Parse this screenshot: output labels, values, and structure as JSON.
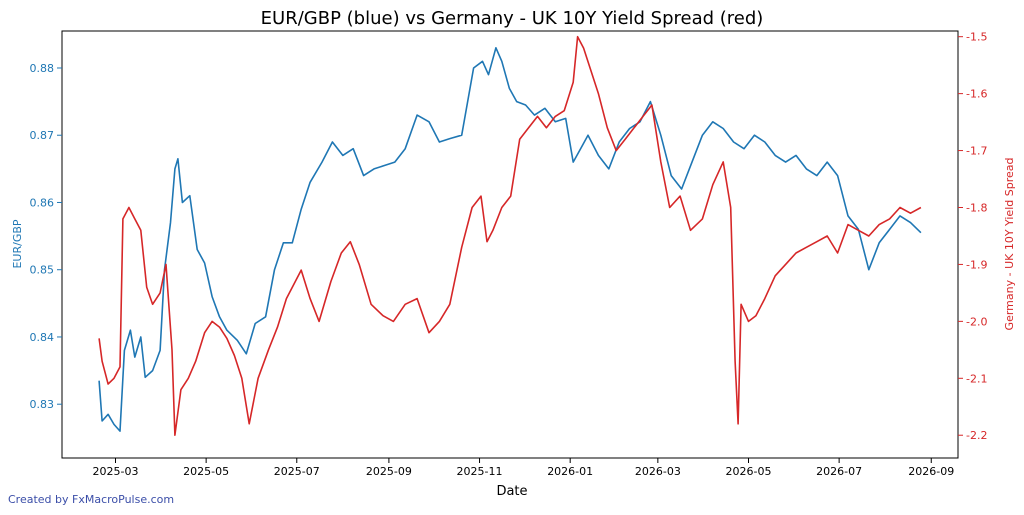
{
  "chart_data": {
    "type": "line",
    "title": "EUR/GBP (blue) vs Germany - UK 10Y Yield Spread (red)",
    "xlabel": "Date",
    "x_ticks": [
      "2025-03",
      "2025-05",
      "2025-07",
      "2025-09",
      "2025-11",
      "2026-01",
      "2026-03",
      "2026-05",
      "2026-07",
      "2026-09"
    ],
    "xlim": [
      "2025-01-24",
      "2026-09-19"
    ],
    "y_left": {
      "label": "EUR/GBP",
      "ticks": [
        "0.83",
        "0.84",
        "0.85",
        "0.86",
        "0.87",
        "0.88"
      ],
      "ylim": [
        0.822,
        0.8855
      ],
      "color": "#1f77b4"
    },
    "y_right": {
      "label": "Germany - UK 10Y Yield Spread",
      "ticks": [
        "-2.2",
        "-2.1",
        "-2.0",
        "-1.9",
        "-1.8",
        "-1.7",
        "-1.6",
        "-1.5"
      ],
      "ylim": [
        -2.24,
        -1.49
      ],
      "color": "#d62728"
    },
    "series": [
      {
        "name": "EUR/GBP",
        "axis": "left",
        "color": "#1f77b4",
        "x": [
          "2025-02-18",
          "2025-02-20",
          "2025-02-24",
          "2025-02-28",
          "2025-03-04",
          "2025-03-07",
          "2025-03-11",
          "2025-03-14",
          "2025-03-18",
          "2025-03-21",
          "2025-03-26",
          "2025-03-31",
          "2025-04-03",
          "2025-04-07",
          "2025-04-10",
          "2025-04-12",
          "2025-04-15",
          "2025-04-20",
          "2025-04-25",
          "2025-04-30",
          "2025-05-05",
          "2025-05-10",
          "2025-05-15",
          "2025-05-22",
          "2025-05-28",
          "2025-06-03",
          "2025-06-10",
          "2025-06-16",
          "2025-06-22",
          "2025-06-28",
          "2025-07-04",
          "2025-07-10",
          "2025-07-18",
          "2025-07-25",
          "2025-08-01",
          "2025-08-08",
          "2025-08-15",
          "2025-08-22",
          "2025-08-29",
          "2025-09-05",
          "2025-09-12",
          "2025-09-20",
          "2025-09-28",
          "2025-10-05",
          "2025-10-12",
          "2025-10-20",
          "2025-10-28",
          "2025-11-03",
          "2025-11-07",
          "2025-11-12",
          "2025-11-16",
          "2025-11-21",
          "2025-11-26",
          "2025-12-02",
          "2025-12-08",
          "2025-12-15",
          "2025-12-22",
          "2025-12-29",
          "2026-01-03",
          "2026-01-08",
          "2026-01-13",
          "2026-01-20",
          "2026-01-27",
          "2026-02-03",
          "2026-02-10",
          "2026-02-17",
          "2026-02-24",
          "2026-03-03",
          "2026-03-10",
          "2026-03-17",
          "2026-03-24",
          "2026-03-31",
          "2026-04-07",
          "2026-04-14",
          "2026-04-21",
          "2026-04-28",
          "2026-05-05",
          "2026-05-12",
          "2026-05-19",
          "2026-05-26",
          "2026-06-02",
          "2026-06-09",
          "2026-06-16",
          "2026-06-23",
          "2026-06-30",
          "2026-07-07",
          "2026-07-14",
          "2026-07-21",
          "2026-07-28",
          "2026-08-04",
          "2026-08-11",
          "2026-08-18",
          "2026-08-25"
        ],
        "y": [
          0.8335,
          0.8275,
          0.8285,
          0.827,
          0.826,
          0.838,
          0.841,
          0.837,
          0.84,
          0.834,
          0.835,
          0.838,
          0.85,
          0.857,
          0.865,
          0.8665,
          0.86,
          0.861,
          0.853,
          0.851,
          0.846,
          0.843,
          0.841,
          0.8395,
          0.8375,
          0.842,
          0.843,
          0.85,
          0.854,
          0.854,
          0.859,
          0.863,
          0.866,
          0.869,
          0.867,
          0.868,
          0.864,
          0.865,
          0.8655,
          0.866,
          0.868,
          0.873,
          0.872,
          0.869,
          0.8695,
          0.87,
          0.88,
          0.881,
          0.879,
          0.883,
          0.881,
          0.877,
          0.875,
          0.8745,
          0.873,
          0.874,
          0.872,
          0.8725,
          0.866,
          0.868,
          0.87,
          0.867,
          0.865,
          0.869,
          0.871,
          0.872,
          0.875,
          0.87,
          0.864,
          0.862,
          0.866,
          0.87,
          0.872,
          0.871,
          0.869,
          0.868,
          0.87,
          0.869,
          0.867,
          0.866,
          0.867,
          0.865,
          0.864,
          0.866,
          0.864,
          0.858,
          0.856,
          0.85,
          0.854,
          0.856,
          0.858,
          0.857,
          0.8555
        ]
      },
      {
        "name": "Germany - UK 10Y Yield Spread",
        "axis": "right",
        "color": "#d62728",
        "x": [
          "2025-02-18",
          "2025-02-20",
          "2025-02-24",
          "2025-02-28",
          "2025-03-04",
          "2025-03-06",
          "2025-03-10",
          "2025-03-14",
          "2025-03-18",
          "2025-03-22",
          "2025-03-26",
          "2025-03-31",
          "2025-04-04",
          "2025-04-08",
          "2025-04-10",
          "2025-04-14",
          "2025-04-19",
          "2025-04-24",
          "2025-04-30",
          "2025-05-05",
          "2025-05-10",
          "2025-05-15",
          "2025-05-20",
          "2025-05-25",
          "2025-05-30",
          "2025-06-05",
          "2025-06-12",
          "2025-06-18",
          "2025-06-24",
          "2025-06-30",
          "2025-07-04",
          "2025-07-10",
          "2025-07-16",
          "2025-07-24",
          "2025-07-31",
          "2025-08-06",
          "2025-08-12",
          "2025-08-20",
          "2025-08-28",
          "2025-09-04",
          "2025-09-12",
          "2025-09-20",
          "2025-09-28",
          "2025-10-05",
          "2025-10-12",
          "2025-10-20",
          "2025-10-27",
          "2025-11-02",
          "2025-11-06",
          "2025-11-10",
          "2025-11-16",
          "2025-11-22",
          "2025-11-28",
          "2025-12-04",
          "2025-12-10",
          "2025-12-16",
          "2025-12-22",
          "2025-12-28",
          "2026-01-03",
          "2026-01-06",
          "2026-01-10",
          "2026-01-15",
          "2026-01-20",
          "2026-01-26",
          "2026-02-01",
          "2026-02-07",
          "2026-02-13",
          "2026-02-19",
          "2026-02-25",
          "2026-03-03",
          "2026-03-09",
          "2026-03-16",
          "2026-03-23",
          "2026-03-31",
          "2026-04-07",
          "2026-04-14",
          "2026-04-19",
          "2026-04-22",
          "2026-04-24",
          "2026-04-26",
          "2026-05-01",
          "2026-05-06",
          "2026-05-12",
          "2026-05-19",
          "2026-05-26",
          "2026-06-02",
          "2026-06-09",
          "2026-06-16",
          "2026-06-23",
          "2026-06-30",
          "2026-07-07",
          "2026-07-14",
          "2026-07-21",
          "2026-07-28",
          "2026-08-04",
          "2026-08-11",
          "2026-08-18",
          "2026-08-25"
        ],
        "y": [
          -2.03,
          -2.07,
          -2.11,
          -2.1,
          -2.08,
          -1.82,
          -1.8,
          -1.82,
          -1.84,
          -1.94,
          -1.97,
          -1.95,
          -1.9,
          -2.05,
          -2.2,
          -2.12,
          -2.1,
          -2.07,
          -2.02,
          -2.0,
          -2.01,
          -2.03,
          -2.06,
          -2.1,
          -2.18,
          -2.1,
          -2.05,
          -2.01,
          -1.96,
          -1.93,
          -1.91,
          -1.96,
          -2.0,
          -1.93,
          -1.88,
          -1.86,
          -1.9,
          -1.97,
          -1.99,
          -2.0,
          -1.97,
          -1.96,
          -2.02,
          -2.0,
          -1.97,
          -1.87,
          -1.8,
          -1.78,
          -1.86,
          -1.84,
          -1.8,
          -1.78,
          -1.68,
          -1.66,
          -1.64,
          -1.66,
          -1.64,
          -1.63,
          -1.58,
          -1.5,
          -1.52,
          -1.56,
          -1.6,
          -1.66,
          -1.7,
          -1.68,
          -1.66,
          -1.64,
          -1.62,
          -1.72,
          -1.8,
          -1.78,
          -1.84,
          -1.82,
          -1.76,
          -1.72,
          -1.8,
          -2.07,
          -2.18,
          -1.97,
          -2.0,
          -1.99,
          -1.96,
          -1.92,
          -1.9,
          -1.88,
          -1.87,
          -1.86,
          -1.85,
          -1.88,
          -1.83,
          -1.84,
          -1.85,
          -1.83,
          -1.82,
          -1.8,
          -1.81,
          -1.8
        ]
      }
    ],
    "grid": false,
    "legend": "none"
  },
  "credit": "Created by FxMacroPulse.com"
}
